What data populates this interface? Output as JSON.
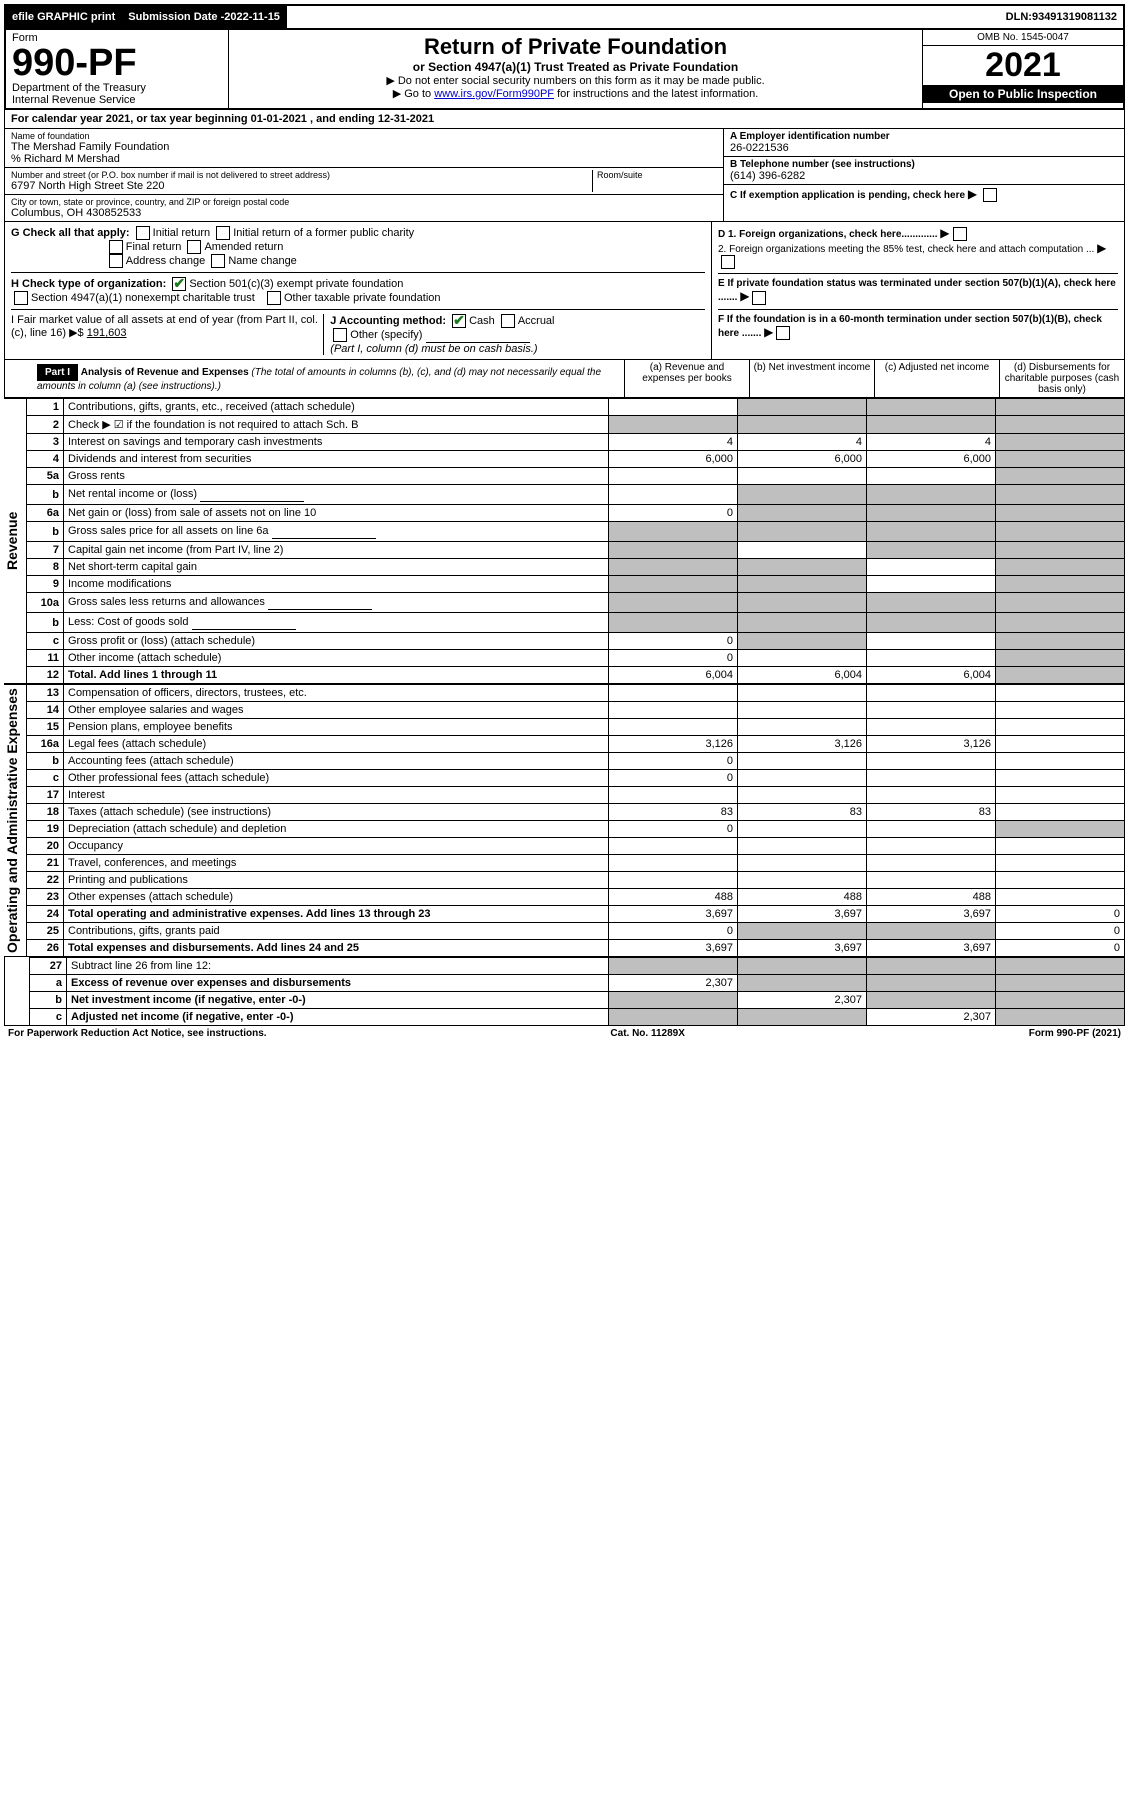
{
  "topbar": {
    "efile": "efile GRAPHIC print",
    "submission_label": "Submission Date - ",
    "submission_date": "2022-11-15",
    "dln_label": "DLN: ",
    "dln": "93491319081132"
  },
  "header": {
    "form_label": "Form",
    "form_number": "990-PF",
    "dept": "Department of the Treasury",
    "irs": "Internal Revenue Service",
    "title": "Return of Private Foundation",
    "subtitle": "or Section 4947(a)(1) Trust Treated as Private Foundation",
    "instr1": "▶ Do not enter social security numbers on this form as it may be made public.",
    "instr2_pre": "▶ Go to ",
    "instr2_link": "www.irs.gov/Form990PF",
    "instr2_post": " for instructions and the latest information.",
    "omb": "OMB No. 1545-0047",
    "year": "2021",
    "open": "Open to Public Inspection"
  },
  "calyear": {
    "text_pre": "For calendar year 2021, or tax year beginning ",
    "begin": "01-01-2021",
    "mid": " , and ending ",
    "end": "12-31-2021"
  },
  "entity": {
    "name_label": "Name of foundation",
    "name": "The Mershad Family Foundation",
    "care_of": "% Richard M Mershad",
    "addr_label": "Number and street (or P.O. box number if mail is not delivered to street address)",
    "addr": "6797 North High Street Ste 220",
    "room_label": "Room/suite",
    "city_label": "City or town, state or province, country, and ZIP or foreign postal code",
    "city": "Columbus, OH  430852533",
    "ein_label": "A Employer identification number",
    "ein": "26-0221536",
    "phone_label": "B Telephone number (see instructions)",
    "phone": "(614) 396-6282",
    "c_label": "C If exemption application is pending, check here",
    "d1": "D 1. Foreign organizations, check here.............",
    "d2": "2. Foreign organizations meeting the 85% test, check here and attach computation ...",
    "e_label": "E If private foundation status was terminated under section 507(b)(1)(A), check here .......",
    "f_label": "F If the foundation is in a 60-month termination under section 507(b)(1)(B), check here ......."
  },
  "g": {
    "label": "G Check all that apply:",
    "opts": [
      "Initial return",
      "Initial return of a former public charity",
      "Final return",
      "Amended return",
      "Address change",
      "Name change"
    ]
  },
  "h": {
    "label": "H Check type of organization:",
    "opt1": "Section 501(c)(3) exempt private foundation",
    "opt2": "Section 4947(a)(1) nonexempt charitable trust",
    "opt3": "Other taxable private foundation"
  },
  "i": {
    "label": "I Fair market value of all assets at end of year (from Part II, col. (c), line 16) ▶$",
    "value": "191,603"
  },
  "j": {
    "label": "J Accounting method:",
    "cash": "Cash",
    "accrual": "Accrual",
    "other": "Other (specify)",
    "note": "(Part I, column (d) must be on cash basis.)"
  },
  "part1": {
    "label": "Part I",
    "title": "Analysis of Revenue and Expenses",
    "note": " (The total of amounts in columns (b), (c), and (d) may not necessarily equal the amounts in column (a) (see instructions).)",
    "cols": {
      "a": "(a) Revenue and expenses per books",
      "b": "(b) Net investment income",
      "c": "(c) Adjusted net income",
      "d": "(d) Disbursements for charitable purposes (cash basis only)"
    }
  },
  "side": {
    "rev": "Revenue",
    "exp": "Operating and Administrative Expenses"
  },
  "rows": [
    {
      "n": "1",
      "t": "Contributions, gifts, grants, etc., received (attach schedule)",
      "a": "",
      "b": "shade",
      "c": "shade",
      "d": "shade"
    },
    {
      "n": "2",
      "t": "Check ▶ ☑ if the foundation is not required to attach Sch. B",
      "a": "shade",
      "b": "shade",
      "c": "shade",
      "d": "shade",
      "bold_not": true
    },
    {
      "n": "3",
      "t": "Interest on savings and temporary cash investments",
      "a": "4",
      "b": "4",
      "c": "4",
      "d": "shade"
    },
    {
      "n": "4",
      "t": "Dividends and interest from securities",
      "a": "6,000",
      "b": "6,000",
      "c": "6,000",
      "d": "shade"
    },
    {
      "n": "5a",
      "t": "Gross rents",
      "a": "",
      "b": "",
      "c": "",
      "d": "shade"
    },
    {
      "n": "b",
      "t": "Net rental income or (loss)",
      "a": "",
      "b": "shade",
      "c": "shade",
      "d": "shade",
      "input": true
    },
    {
      "n": "6a",
      "t": "Net gain or (loss) from sale of assets not on line 10",
      "a": "0",
      "b": "shade",
      "c": "shade",
      "d": "shade"
    },
    {
      "n": "b",
      "t": "Gross sales price for all assets on line 6a",
      "a": "shade",
      "b": "shade",
      "c": "shade",
      "d": "shade",
      "input": true
    },
    {
      "n": "7",
      "t": "Capital gain net income (from Part IV, line 2)",
      "a": "shade",
      "b": "",
      "c": "shade",
      "d": "shade"
    },
    {
      "n": "8",
      "t": "Net short-term capital gain",
      "a": "shade",
      "b": "shade",
      "c": "",
      "d": "shade"
    },
    {
      "n": "9",
      "t": "Income modifications",
      "a": "shade",
      "b": "shade",
      "c": "",
      "d": "shade"
    },
    {
      "n": "10a",
      "t": "Gross sales less returns and allowances",
      "a": "shade",
      "b": "shade",
      "c": "shade",
      "d": "shade",
      "input": true
    },
    {
      "n": "b",
      "t": "Less: Cost of goods sold",
      "a": "shade",
      "b": "shade",
      "c": "shade",
      "d": "shade",
      "input": true
    },
    {
      "n": "c",
      "t": "Gross profit or (loss) (attach schedule)",
      "a": "0",
      "b": "shade",
      "c": "",
      "d": "shade"
    },
    {
      "n": "11",
      "t": "Other income (attach schedule)",
      "a": "0",
      "b": "",
      "c": "",
      "d": "shade"
    },
    {
      "n": "12",
      "t": "Total. Add lines 1 through 11",
      "a": "6,004",
      "b": "6,004",
      "c": "6,004",
      "d": "shade",
      "bold": true
    }
  ],
  "exp_rows": [
    {
      "n": "13",
      "t": "Compensation of officers, directors, trustees, etc.",
      "a": "",
      "b": "",
      "c": "",
      "d": ""
    },
    {
      "n": "14",
      "t": "Other employee salaries and wages",
      "a": "",
      "b": "",
      "c": "",
      "d": ""
    },
    {
      "n": "15",
      "t": "Pension plans, employee benefits",
      "a": "",
      "b": "",
      "c": "",
      "d": ""
    },
    {
      "n": "16a",
      "t": "Legal fees (attach schedule)",
      "a": "3,126",
      "b": "3,126",
      "c": "3,126",
      "d": ""
    },
    {
      "n": "b",
      "t": "Accounting fees (attach schedule)",
      "a": "0",
      "b": "",
      "c": "",
      "d": ""
    },
    {
      "n": "c",
      "t": "Other professional fees (attach schedule)",
      "a": "0",
      "b": "",
      "c": "",
      "d": ""
    },
    {
      "n": "17",
      "t": "Interest",
      "a": "",
      "b": "",
      "c": "",
      "d": ""
    },
    {
      "n": "18",
      "t": "Taxes (attach schedule) (see instructions)",
      "a": "83",
      "b": "83",
      "c": "83",
      "d": ""
    },
    {
      "n": "19",
      "t": "Depreciation (attach schedule) and depletion",
      "a": "0",
      "b": "",
      "c": "",
      "d": "shade"
    },
    {
      "n": "20",
      "t": "Occupancy",
      "a": "",
      "b": "",
      "c": "",
      "d": ""
    },
    {
      "n": "21",
      "t": "Travel, conferences, and meetings",
      "a": "",
      "b": "",
      "c": "",
      "d": ""
    },
    {
      "n": "22",
      "t": "Printing and publications",
      "a": "",
      "b": "",
      "c": "",
      "d": ""
    },
    {
      "n": "23",
      "t": "Other expenses (attach schedule)",
      "a": "488",
      "b": "488",
      "c": "488",
      "d": ""
    },
    {
      "n": "24",
      "t": "Total operating and administrative expenses. Add lines 13 through 23",
      "a": "3,697",
      "b": "3,697",
      "c": "3,697",
      "d": "0",
      "bold": true
    },
    {
      "n": "25",
      "t": "Contributions, gifts, grants paid",
      "a": "0",
      "b": "shade",
      "c": "shade",
      "d": "0"
    },
    {
      "n": "26",
      "t": "Total expenses and disbursements. Add lines 24 and 25",
      "a": "3,697",
      "b": "3,697",
      "c": "3,697",
      "d": "0",
      "bold": true
    }
  ],
  "sub_rows": [
    {
      "n": "27",
      "t": "Subtract line 26 from line 12:",
      "a": "shade",
      "b": "shade",
      "c": "shade",
      "d": "shade"
    },
    {
      "n": "a",
      "t": "Excess of revenue over expenses and disbursements",
      "a": "2,307",
      "b": "shade",
      "c": "shade",
      "d": "shade",
      "bold": true
    },
    {
      "n": "b",
      "t": "Net investment income (if negative, enter -0-)",
      "a": "shade",
      "b": "2,307",
      "c": "shade",
      "d": "shade",
      "bold": true
    },
    {
      "n": "c",
      "t": "Adjusted net income (if negative, enter -0-)",
      "a": "shade",
      "b": "shade",
      "c": "2,307",
      "d": "shade",
      "bold": true
    }
  ],
  "footer": {
    "left": "For Paperwork Reduction Act Notice, see instructions.",
    "mid": "Cat. No. 11289X",
    "right": "Form 990-PF (2021)"
  }
}
